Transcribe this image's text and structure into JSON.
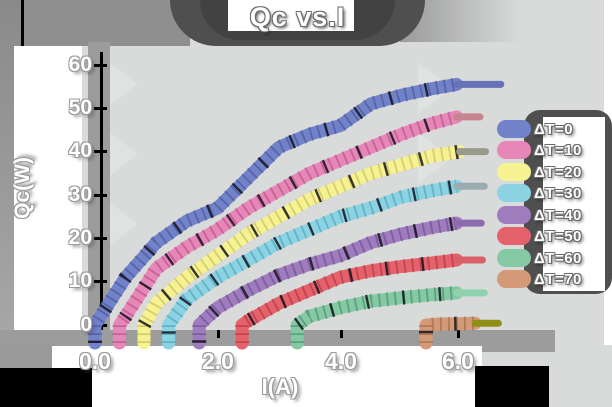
{
  "title": "Qc vs.I",
  "axes": {
    "x_label": "I(A)",
    "y_label": "Qc(W)",
    "x_ticks": [
      "0.0",
      "2.0",
      "4.0",
      "6.0"
    ],
    "y_ticks": [
      "0",
      "10",
      "20",
      "30",
      "40",
      "50",
      "60"
    ]
  },
  "colors": {
    "background": "#d9dbdb",
    "frame_gray": "#9c9c9c",
    "shadow_dark": "#4f4f4f",
    "black": "#000000",
    "white": "#ffffff"
  },
  "chart_data": {
    "type": "line",
    "title": "Qc vs.I",
    "xlabel": "I(A)",
    "ylabel": "Qc(W)",
    "xlim": [
      0,
      6.6
    ],
    "ylim": [
      0,
      60
    ],
    "x_tick_values": [
      0,
      2,
      4,
      6
    ],
    "y_tick_values": [
      0,
      10,
      20,
      30,
      40,
      50,
      60
    ],
    "grid": false,
    "legend_position": "right",
    "style": "hand-drawn thick crayon strokes with dark hatching and short muted end-caps",
    "series": [
      {
        "name": "ΔT=0",
        "color": "#7282c8",
        "hatch": "#39488c",
        "tail": "#6672b6",
        "tail_dx": 0.72,
        "x": [
          0,
          0.5,
          1,
          1.5,
          2,
          2.5,
          3,
          3.5,
          4,
          4.5,
          5,
          5.5,
          5.9
        ],
        "y": [
          0,
          11,
          19,
          24,
          27,
          34,
          41,
          44,
          46,
          51,
          53,
          54.5,
          55.5
        ]
      },
      {
        "name": "ΔT=10",
        "color": "#e787b8",
        "hatch": "#a53d78",
        "tail": "#c4858f",
        "tail_dx": 0.38,
        "x": [
          0.4,
          0.5,
          1,
          1.5,
          2,
          2.5,
          3,
          3.5,
          4,
          4.5,
          5,
          5.5,
          5.9
        ],
        "y": [
          0,
          2,
          13,
          18,
          22,
          27,
          31,
          35,
          38,
          41,
          44,
          46.5,
          48
        ]
      },
      {
        "name": "ΔT=20",
        "color": "#f6f292",
        "hatch": "#b3aa45",
        "tail": "#9a9a8c",
        "tail_dx": 0.42,
        "x": [
          0.8,
          1,
          1.5,
          2,
          2.5,
          3,
          3.5,
          4,
          4.5,
          5,
          5.5,
          5.95
        ],
        "y": [
          0,
          5,
          11,
          16,
          21,
          25,
          29,
          32,
          35,
          37,
          39,
          40
        ]
      },
      {
        "name": "ΔT=30",
        "color": "#8bd2e3",
        "hatch": "#3b93aa",
        "tail": "#9aacb0",
        "tail_dx": 0.45,
        "x": [
          1.2,
          1.5,
          2,
          2.5,
          3,
          3.5,
          4,
          4.5,
          5,
          5.5,
          5.9
        ],
        "y": [
          0,
          6,
          11,
          15,
          19,
          22,
          25,
          27,
          29.5,
          31,
          32
        ]
      },
      {
        "name": "ΔT=40",
        "color": "#9e7cbe",
        "hatch": "#5d3e82",
        "tail": "#8d6cae",
        "tail_dx": 0.4,
        "x": [
          1.7,
          2,
          2.5,
          3,
          3.5,
          4,
          4.5,
          5,
          5.5,
          5.9
        ],
        "y": [
          0,
          4,
          8,
          11.5,
          14,
          16,
          19,
          21,
          22.5,
          23.5
        ]
      },
      {
        "name": "ΔT=50",
        "color": "#e5616b",
        "hatch": "#9c2a34",
        "tail": "#d96069",
        "tail_dx": 0.42,
        "x": [
          2.4,
          2.5,
          3,
          3.5,
          4,
          4.5,
          5,
          5.5,
          5.9
        ],
        "y": [
          0,
          1,
          5,
          8,
          11,
          12.5,
          13.5,
          14.3,
          15
        ]
      },
      {
        "name": "ΔT=60",
        "color": "#85c9a4",
        "hatch": "#2f7b58",
        "tail": "#8ed2ad",
        "tail_dx": 0.45,
        "x": [
          3.3,
          3.5,
          4,
          4.5,
          5,
          5.5,
          5.9
        ],
        "y": [
          0,
          2,
          4,
          5.5,
          6.3,
          7,
          7.4
        ]
      },
      {
        "name": "ΔT=70",
        "color": "#d49a78",
        "hatch": "#8a5a36",
        "tail": "#8f8f18",
        "tail_dx": 0.38,
        "x": [
          5.4,
          5.6,
          5.9,
          6.2
        ],
        "y": [
          0,
          0.2,
          0.3,
          0.4
        ]
      }
    ]
  }
}
